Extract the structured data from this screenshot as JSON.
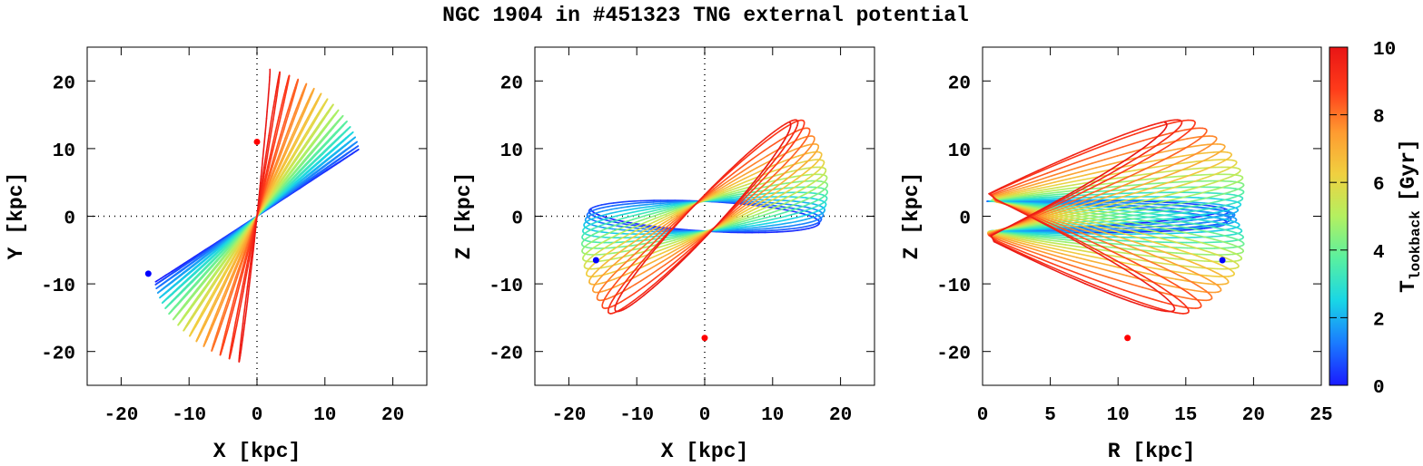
{
  "chart_data": {
    "title": "NGC 1904 in #451323 TNG external potential",
    "type": "line",
    "colorbar": {
      "label": "T",
      "label_sub": "lookback",
      "label_unit": "[Gyr]",
      "range": [
        0,
        10
      ],
      "ticks": [
        "0",
        "2",
        "4",
        "6",
        "8",
        "10"
      ],
      "colors": [
        "#1a1aff",
        "#1a7bff",
        "#19d6e6",
        "#59f0a0",
        "#b4f060",
        "#f0d040",
        "#ff9a30",
        "#ff3b1a",
        "#e81515"
      ]
    },
    "panels": [
      {
        "id": "xy",
        "xlabel": "X [kpc]",
        "ylabel": "Y [kpc]",
        "xlim": [
          -25,
          25
        ],
        "ylim": [
          -25,
          25
        ],
        "xticks": [
          "-20",
          "-10",
          "0",
          "10",
          "20"
        ],
        "yticks": [
          "-20",
          "-10",
          "0",
          "10",
          "20"
        ],
        "zero_lines": true,
        "orbit": {
          "style": "radial-fan",
          "present_end": [
            -16,
            -8.5
          ],
          "start_end": [
            15,
            8.5
          ],
          "past_angle_end": [
            2,
            22
          ],
          "past_neg_end": [
            -3,
            -23
          ]
        },
        "markers": [
          {
            "name": "present",
            "x": -16,
            "y": -8.5,
            "color": "#0000ff"
          },
          {
            "name": "initial",
            "x": 0,
            "y": 11,
            "color": "#ff0000"
          }
        ]
      },
      {
        "id": "xz",
        "xlabel": "X [kpc]",
        "ylabel": "Z [kpc]",
        "xlim": [
          -25,
          25
        ],
        "ylim": [
          -25,
          25
        ],
        "xticks": [
          "-20",
          "-10",
          "0",
          "10",
          "20"
        ],
        "yticks": [
          "-20",
          "-10",
          "0",
          "10",
          "20"
        ],
        "zero_lines": true,
        "orbit": {
          "style": "rosette"
        },
        "markers": [
          {
            "name": "present",
            "x": -16,
            "y": -6.5,
            "color": "#0000ff"
          },
          {
            "name": "initial",
            "x": 0,
            "y": -18,
            "color": "#ff0000"
          }
        ]
      },
      {
        "id": "rz",
        "xlabel": "R [kpc]",
        "ylabel": "Z [kpc]",
        "xlim": [
          0,
          25
        ],
        "ylim": [
          -25,
          25
        ],
        "xticks": [
          "0",
          "5",
          "10",
          "15",
          "20",
          "25"
        ],
        "yticks": [
          "-20",
          "-10",
          "0",
          "10",
          "20"
        ],
        "zero_lines": false,
        "orbit": {
          "style": "meridional-fan"
        },
        "markers": [
          {
            "name": "present",
            "x": 17.7,
            "y": -6.5,
            "color": "#0000ff"
          },
          {
            "name": "initial",
            "x": 10.7,
            "y": -18,
            "color": "#ff0000"
          }
        ]
      }
    ]
  }
}
